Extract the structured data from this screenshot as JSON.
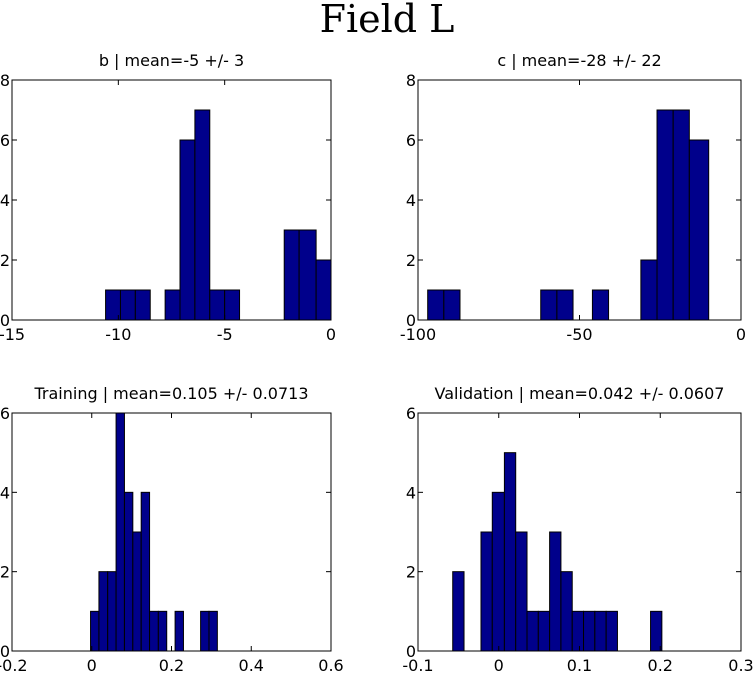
{
  "figure": {
    "title": "Field L"
  },
  "chart_data": [
    {
      "type": "bar",
      "title": "b | mean=-5 +/- 3",
      "xlim": [
        -15,
        0
      ],
      "ylim": [
        0,
        8
      ],
      "xticks": [
        -15,
        -10,
        -5,
        0
      ],
      "xtick_labels": [
        "-15",
        "-10",
        "-5",
        "0"
      ],
      "yticks": [
        0,
        2,
        4,
        6,
        8
      ],
      "ytick_labels": [
        "0",
        "2",
        "4",
        "6",
        "8"
      ],
      "bins": [
        {
          "x0": -10.6,
          "x1": -9.9,
          "count": 1
        },
        {
          "x0": -9.9,
          "x1": -9.2,
          "count": 1
        },
        {
          "x0": -9.2,
          "x1": -8.5,
          "count": 1
        },
        {
          "x0": -7.8,
          "x1": -7.1,
          "count": 1
        },
        {
          "x0": -7.1,
          "x1": -6.4,
          "count": 6
        },
        {
          "x0": -6.4,
          "x1": -5.7,
          "count": 7
        },
        {
          "x0": -5.7,
          "x1": -5.0,
          "count": 1
        },
        {
          "x0": -5.0,
          "x1": -4.3,
          "count": 1
        },
        {
          "x0": -2.2,
          "x1": -1.5,
          "count": 3
        },
        {
          "x0": -1.5,
          "x1": -0.7,
          "count": 3
        },
        {
          "x0": -0.7,
          "x1": 0.0,
          "count": 2
        }
      ]
    },
    {
      "type": "bar",
      "title": "c | mean=-28 +/- 22",
      "xlim": [
        -100,
        0
      ],
      "ylim": [
        0,
        8
      ],
      "xticks": [
        -100,
        -50,
        0
      ],
      "xtick_labels": [
        "-100",
        "-50",
        "0"
      ],
      "yticks": [
        0,
        2,
        4,
        6,
        8
      ],
      "ytick_labels": [
        "0",
        "2",
        "4",
        "6",
        "8"
      ],
      "bins": [
        {
          "x0": -97,
          "x1": -92,
          "count": 1
        },
        {
          "x0": -92,
          "x1": -87,
          "count": 1
        },
        {
          "x0": -62,
          "x1": -57,
          "count": 1
        },
        {
          "x0": -57,
          "x1": -52,
          "count": 1
        },
        {
          "x0": -46,
          "x1": -41,
          "count": 1
        },
        {
          "x0": -31,
          "x1": -26,
          "count": 2
        },
        {
          "x0": -26,
          "x1": -21,
          "count": 7
        },
        {
          "x0": -21,
          "x1": -16,
          "count": 7
        },
        {
          "x0": -16,
          "x1": -10,
          "count": 6
        }
      ]
    },
    {
      "type": "bar",
      "title": "Training | mean=0.105 +/- 0.0713",
      "xlim": [
        -0.2,
        0.6
      ],
      "ylim": [
        0,
        6
      ],
      "xticks": [
        -0.2,
        0,
        0.2,
        0.4,
        0.6
      ],
      "xtick_labels": [
        "-0.2",
        "0",
        "0.2",
        "0.4",
        "0.6"
      ],
      "yticks": [
        0,
        2,
        4,
        6
      ],
      "ytick_labels": [
        "0",
        "2",
        "4",
        "6"
      ],
      "bins": [
        {
          "x0": -0.003,
          "x1": 0.018,
          "count": 1
        },
        {
          "x0": 0.018,
          "x1": 0.04,
          "count": 2
        },
        {
          "x0": 0.04,
          "x1": 0.061,
          "count": 2
        },
        {
          "x0": 0.061,
          "x1": 0.082,
          "count": 6
        },
        {
          "x0": 0.082,
          "x1": 0.103,
          "count": 4
        },
        {
          "x0": 0.103,
          "x1": 0.124,
          "count": 3
        },
        {
          "x0": 0.124,
          "x1": 0.145,
          "count": 4
        },
        {
          "x0": 0.145,
          "x1": 0.167,
          "count": 1
        },
        {
          "x0": 0.167,
          "x1": 0.188,
          "count": 1
        },
        {
          "x0": 0.209,
          "x1": 0.23,
          "count": 1
        },
        {
          "x0": 0.273,
          "x1": 0.294,
          "count": 1
        },
        {
          "x0": 0.294,
          "x1": 0.315,
          "count": 1
        }
      ]
    },
    {
      "type": "bar",
      "title": "Validation | mean=0.042 +/- 0.0607",
      "xlim": [
        -0.1,
        0.3
      ],
      "ylim": [
        0,
        6
      ],
      "xticks": [
        -0.1,
        0,
        0.1,
        0.2,
        0.3
      ],
      "xtick_labels": [
        "-0.1",
        "0",
        "0.1",
        "0.2",
        "0.3"
      ],
      "yticks": [
        0,
        2,
        4,
        6
      ],
      "ytick_labels": [
        "0",
        "2",
        "4",
        "6"
      ],
      "bins": [
        {
          "x0": -0.057,
          "x1": -0.043,
          "count": 2
        },
        {
          "x0": -0.022,
          "x1": -0.008,
          "count": 3
        },
        {
          "x0": -0.008,
          "x1": 0.007,
          "count": 4
        },
        {
          "x0": 0.007,
          "x1": 0.021,
          "count": 5
        },
        {
          "x0": 0.021,
          "x1": 0.035,
          "count": 3
        },
        {
          "x0": 0.035,
          "x1": 0.049,
          "count": 1
        },
        {
          "x0": 0.049,
          "x1": 0.063,
          "count": 1
        },
        {
          "x0": 0.063,
          "x1": 0.077,
          "count": 3
        },
        {
          "x0": 0.077,
          "x1": 0.091,
          "count": 2
        },
        {
          "x0": 0.091,
          "x1": 0.105,
          "count": 1
        },
        {
          "x0": 0.105,
          "x1": 0.119,
          "count": 1
        },
        {
          "x0": 0.119,
          "x1": 0.133,
          "count": 1
        },
        {
          "x0": 0.133,
          "x1": 0.147,
          "count": 1
        },
        {
          "x0": 0.188,
          "x1": 0.202,
          "count": 1
        }
      ]
    }
  ]
}
